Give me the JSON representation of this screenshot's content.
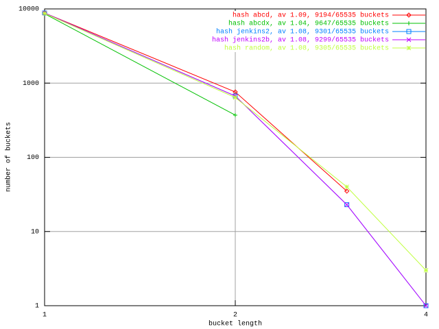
{
  "chart_data": {
    "type": "line",
    "x_label": "bucket length",
    "y_label": "number of buckets",
    "x": [
      1,
      2,
      3,
      4
    ],
    "xlim": [
      1,
      4
    ],
    "xticks": [
      1,
      2,
      4
    ],
    "xlog": true,
    "ylim": [
      1,
      10000
    ],
    "yticks": [
      1,
      10,
      100,
      1000,
      10000
    ],
    "ylog": true,
    "grid": true,
    "legend": "top-right",
    "series": [
      {
        "name": "hash abcd, av 1.09, 9194/65535 buckets",
        "color": "#ff0000",
        "marker": "diamond",
        "values": [
          8800,
          760,
          35,
          null
        ]
      },
      {
        "name": "hash abcdx, av 1.04, 9647/65535 buckets",
        "color": "#00c000",
        "marker": "plus",
        "values": [
          8600,
          370,
          null,
          null
        ]
      },
      {
        "name": "hash jenkins2, av 1.08, 9301/65535 buckets",
        "color": "#0080ff",
        "marker": "square",
        "values": [
          8800,
          671,
          23,
          1
        ]
      },
      {
        "name": "hash jenkins2b, av 1.08, 9299/65535 buckets",
        "color": "#c000ff",
        "marker": "cross",
        "values": [
          8800,
          670,
          23,
          1
        ]
      },
      {
        "name": "hash random, av 1.08, 9305/65535 buckets",
        "color": "#c0ff40",
        "marker": "star",
        "values": [
          8700,
          640,
          40,
          3
        ]
      }
    ]
  }
}
